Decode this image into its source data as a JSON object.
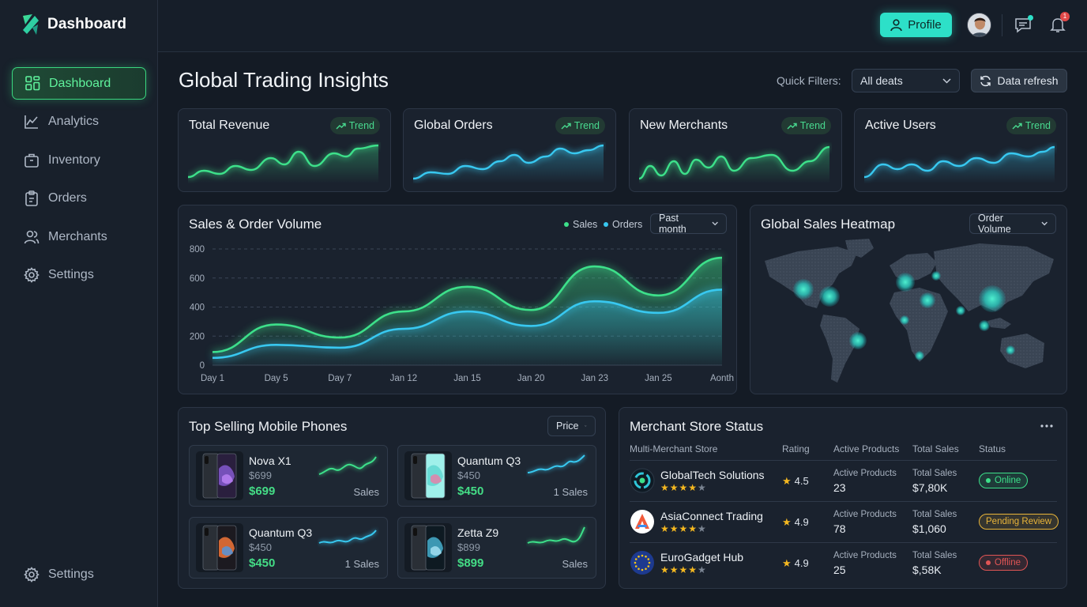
{
  "brand": {
    "name": "Dashboard"
  },
  "sidebar": {
    "items": [
      {
        "label": "Dashboard",
        "icon": "grid-icon",
        "active": true
      },
      {
        "label": "Analytics",
        "icon": "chart-line-icon"
      },
      {
        "label": "Inventory",
        "icon": "box-icon"
      },
      {
        "label": "Orders",
        "icon": "clipboard-icon"
      },
      {
        "label": "Merchants",
        "icon": "users-icon"
      },
      {
        "label": "Settings",
        "icon": "gear-icon"
      }
    ],
    "bottom_item": {
      "label": "Settings",
      "icon": "gear-icon"
    }
  },
  "topbar": {
    "profile_label": "Profile",
    "notification_count": "1"
  },
  "header": {
    "title": "Global Trading Insights",
    "quick_filters_label": "Quick Filters:",
    "quick_filter_value": "All deats",
    "refresh_label": "Data refresh"
  },
  "stats": [
    {
      "title": "Total Revenue",
      "trend_label": "Trend",
      "color": "#3de08a"
    },
    {
      "title": "Global Orders",
      "trend_label": "Trend",
      "color": "#38c8f0"
    },
    {
      "title": "New Merchants",
      "trend_label": "Trend",
      "color": "#3de08a"
    },
    {
      "title": "Active Users",
      "trend_label": "Trend",
      "color": "#38c8f0"
    }
  ],
  "sales_chart": {
    "title": "Sales & Order Volume",
    "period_value": "Past month",
    "chart_data": {
      "type": "area",
      "categories": [
        "Day 1",
        "Day 5",
        "Day 7",
        "Jan 12",
        "Jan 15",
        "Jan 20",
        "Jan 23",
        "Jan 25",
        "Aonth"
      ],
      "ylim": [
        0,
        800
      ],
      "yticks": [
        0,
        200,
        400,
        600,
        800
      ],
      "grid": true,
      "legend": "top-right",
      "series": [
        {
          "name": "Sales",
          "color": "#3de08a",
          "values": [
            90,
            280,
            190,
            370,
            540,
            380,
            680,
            480,
            740
          ]
        },
        {
          "name": "Orders",
          "color": "#38c8f0",
          "values": [
            50,
            140,
            120,
            250,
            370,
            270,
            440,
            360,
            520
          ]
        }
      ]
    }
  },
  "heatmap": {
    "title": "Global Sales Heatmap",
    "metric_value": "Order Volume"
  },
  "phones": {
    "title": "Top Selling Mobile Phones",
    "sort_value": "Price",
    "items": [
      {
        "name": "Nova X1",
        "old_price": "$699",
        "price": "$699",
        "sales": "Sales"
      },
      {
        "name": "Quantum Q3",
        "old_price": "$450",
        "price": "$450",
        "sales": "1  Sales"
      },
      {
        "name": "Quantum Q3",
        "old_price": "$450",
        "price": "$450",
        "sales": "1 Sales"
      },
      {
        "name": "Zetta Z9",
        "old_price": "$899",
        "price": "$899",
        "sales": "Sales"
      }
    ]
  },
  "merchants": {
    "title": "Merchant Store Status",
    "columns": [
      "Multi-Merchant Store",
      "Rating",
      "Active Products",
      "Total Sales",
      "Status"
    ],
    "rows": [
      {
        "name": "GlobalTech Solutions",
        "stars": 4,
        "rating": "4.5",
        "products_label": "Active Products",
        "products": "23",
        "sales_label": "Total Sales",
        "sales": "$7,80K",
        "status": "Online",
        "status_color": "#3de08a"
      },
      {
        "name": "AsiaConnect Trading",
        "stars": 4,
        "rating": "4.9",
        "products_label": "Active Products",
        "products": "78",
        "sales_label": "Total Sales",
        "sales": "$1,060",
        "status": "Pending Review",
        "status_color": "#e8b43a"
      },
      {
        "name": "EuroGadget Hub",
        "stars": 4,
        "rating": "4.9",
        "products_label": "Active Products",
        "products": "25",
        "sales_label": "Total Sales",
        "sales": "$,58K",
        "status": "Offline",
        "status_color": "#e05555"
      }
    ]
  }
}
